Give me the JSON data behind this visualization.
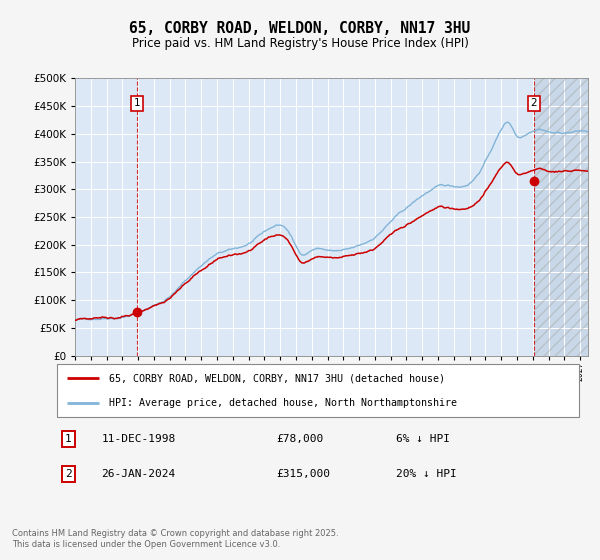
{
  "title": "65, CORBY ROAD, WELDON, CORBY, NN17 3HU",
  "subtitle": "Price paid vs. HM Land Registry's House Price Index (HPI)",
  "plot_bg_color": "#dce8f5",
  "grid_color": "#ffffff",
  "fig_bg_color": "#f5f5f5",
  "hpi_line_color": "#82b4d8",
  "price_line_color": "#cc0000",
  "transaction1_year": 1998.94,
  "transaction1_price": 78000,
  "transaction2_year": 2024.07,
  "transaction2_price": 315000,
  "ylim": [
    0,
    500000
  ],
  "yticks": [
    0,
    50000,
    100000,
    150000,
    200000,
    250000,
    300000,
    350000,
    400000,
    450000,
    500000
  ],
  "xlim_start": 1995.0,
  "xlim_end": 2027.5,
  "legend1": "65, CORBY ROAD, WELDON, CORBY, NN17 3HU (detached house)",
  "legend2": "HPI: Average price, detached house, North Northamptonshire",
  "annotation1_date": "11-DEC-1998",
  "annotation1_price": "£78,000",
  "annotation1_hpi": "6% ↓ HPI",
  "annotation2_date": "26-JAN-2024",
  "annotation2_price": "£315,000",
  "annotation2_hpi": "20% ↓ HPI",
  "footer": "Contains HM Land Registry data © Crown copyright and database right 2025.\nThis data is licensed under the Open Government Licence v3.0.",
  "xtick_years": [
    1995,
    1996,
    1997,
    1998,
    1999,
    2000,
    2001,
    2002,
    2003,
    2004,
    2005,
    2006,
    2007,
    2008,
    2009,
    2010,
    2011,
    2012,
    2013,
    2014,
    2015,
    2016,
    2017,
    2018,
    2019,
    2020,
    2021,
    2022,
    2023,
    2024,
    2025,
    2026,
    2027
  ]
}
